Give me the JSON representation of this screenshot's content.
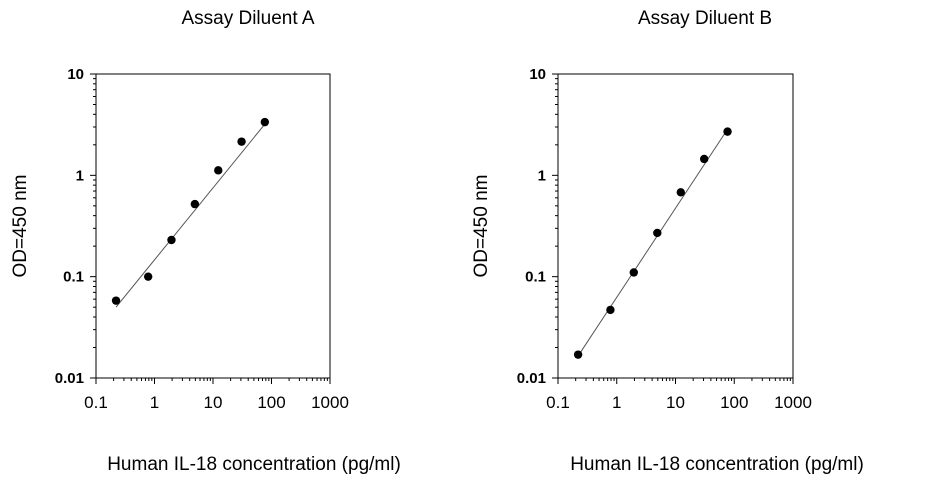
{
  "chart_data": [
    {
      "type": "scatter",
      "title": "Assay Diluent A",
      "xlabel": "Human IL-18  concentration (pg/ml)",
      "ylabel": "OD=450 nm",
      "xscale": "log",
      "yscale": "log",
      "xlim": [
        0.1,
        1000
      ],
      "ylim": [
        0.01,
        10
      ],
      "xticks": [
        "0.1",
        "1",
        "10",
        "100",
        "1000"
      ],
      "yticks": [
        "0.01",
        "0.1",
        "1",
        "10"
      ],
      "grid": false,
      "series": [
        {
          "x": [
            0.22,
            0.78,
            1.95,
            4.9,
            12.3,
            30.8,
            76.9
          ],
          "y": [
            0.058,
            0.1,
            0.23,
            0.52,
            1.12,
            2.15,
            3.35
          ]
        }
      ],
      "fit_line": {
        "x": [
          0.22,
          76.9
        ],
        "y": [
          0.05,
          3.2
        ]
      }
    },
    {
      "type": "scatter",
      "title": "Assay Diluent B",
      "xlabel": "Human IL-18  concentration (pg/ml)",
      "ylabel": "OD=450 nm",
      "xscale": "log",
      "yscale": "log",
      "xlim": [
        0.1,
        1000
      ],
      "ylim": [
        0.01,
        10
      ],
      "xticks": [
        "0.1",
        "1",
        "10",
        "100",
        "1000"
      ],
      "yticks": [
        "0.01",
        "0.1",
        "1",
        "10"
      ],
      "grid": false,
      "series": [
        {
          "x": [
            0.22,
            0.78,
            1.95,
            4.9,
            12.3,
            30.8,
            76.9
          ],
          "y": [
            0.017,
            0.047,
            0.11,
            0.27,
            0.68,
            1.45,
            2.7
          ]
        }
      ],
      "fit_line": {
        "x": [
          0.22,
          76.9
        ],
        "y": [
          0.0165,
          2.85
        ]
      }
    }
  ]
}
